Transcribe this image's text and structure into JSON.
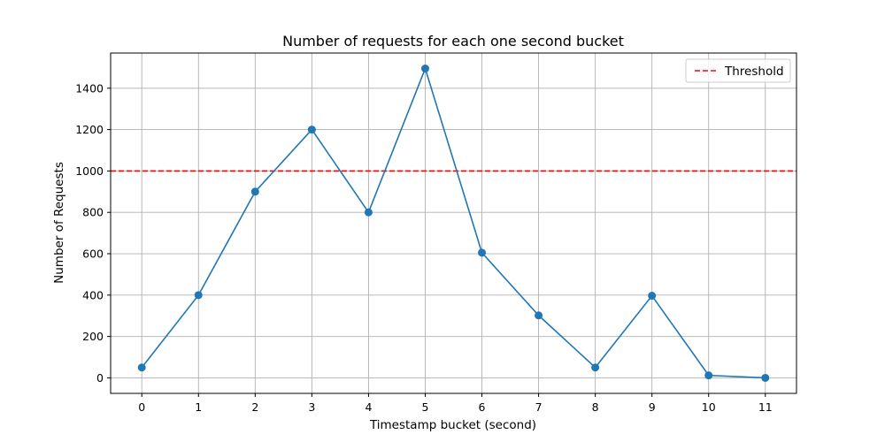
{
  "chart_data": {
    "type": "line",
    "title": "Number of requests for each one second bucket",
    "xlabel": "Timestamp bucket (second)",
    "ylabel": "Number of Requests",
    "x": [
      0,
      1,
      2,
      3,
      4,
      5,
      6,
      7,
      8,
      9,
      10,
      11
    ],
    "series": [
      {
        "values": [
          50,
          400,
          900,
          1200,
          800,
          1495,
          605,
          302,
          50,
          397,
          12,
          0
        ],
        "color": "#1f77b4"
      }
    ],
    "threshold": {
      "name": "Threshold",
      "value": 1000,
      "color": "#ff0000",
      "style": "dashed"
    },
    "xlim": [
      -0.55,
      11.55
    ],
    "ylim": [
      -75,
      1570
    ],
    "yticks": [
      0,
      200,
      400,
      600,
      800,
      1000,
      1200,
      1400
    ],
    "xticks": [
      0,
      1,
      2,
      3,
      4,
      5,
      6,
      7,
      8,
      9,
      10,
      11
    ],
    "grid": true,
    "legend_position": "top-right"
  }
}
